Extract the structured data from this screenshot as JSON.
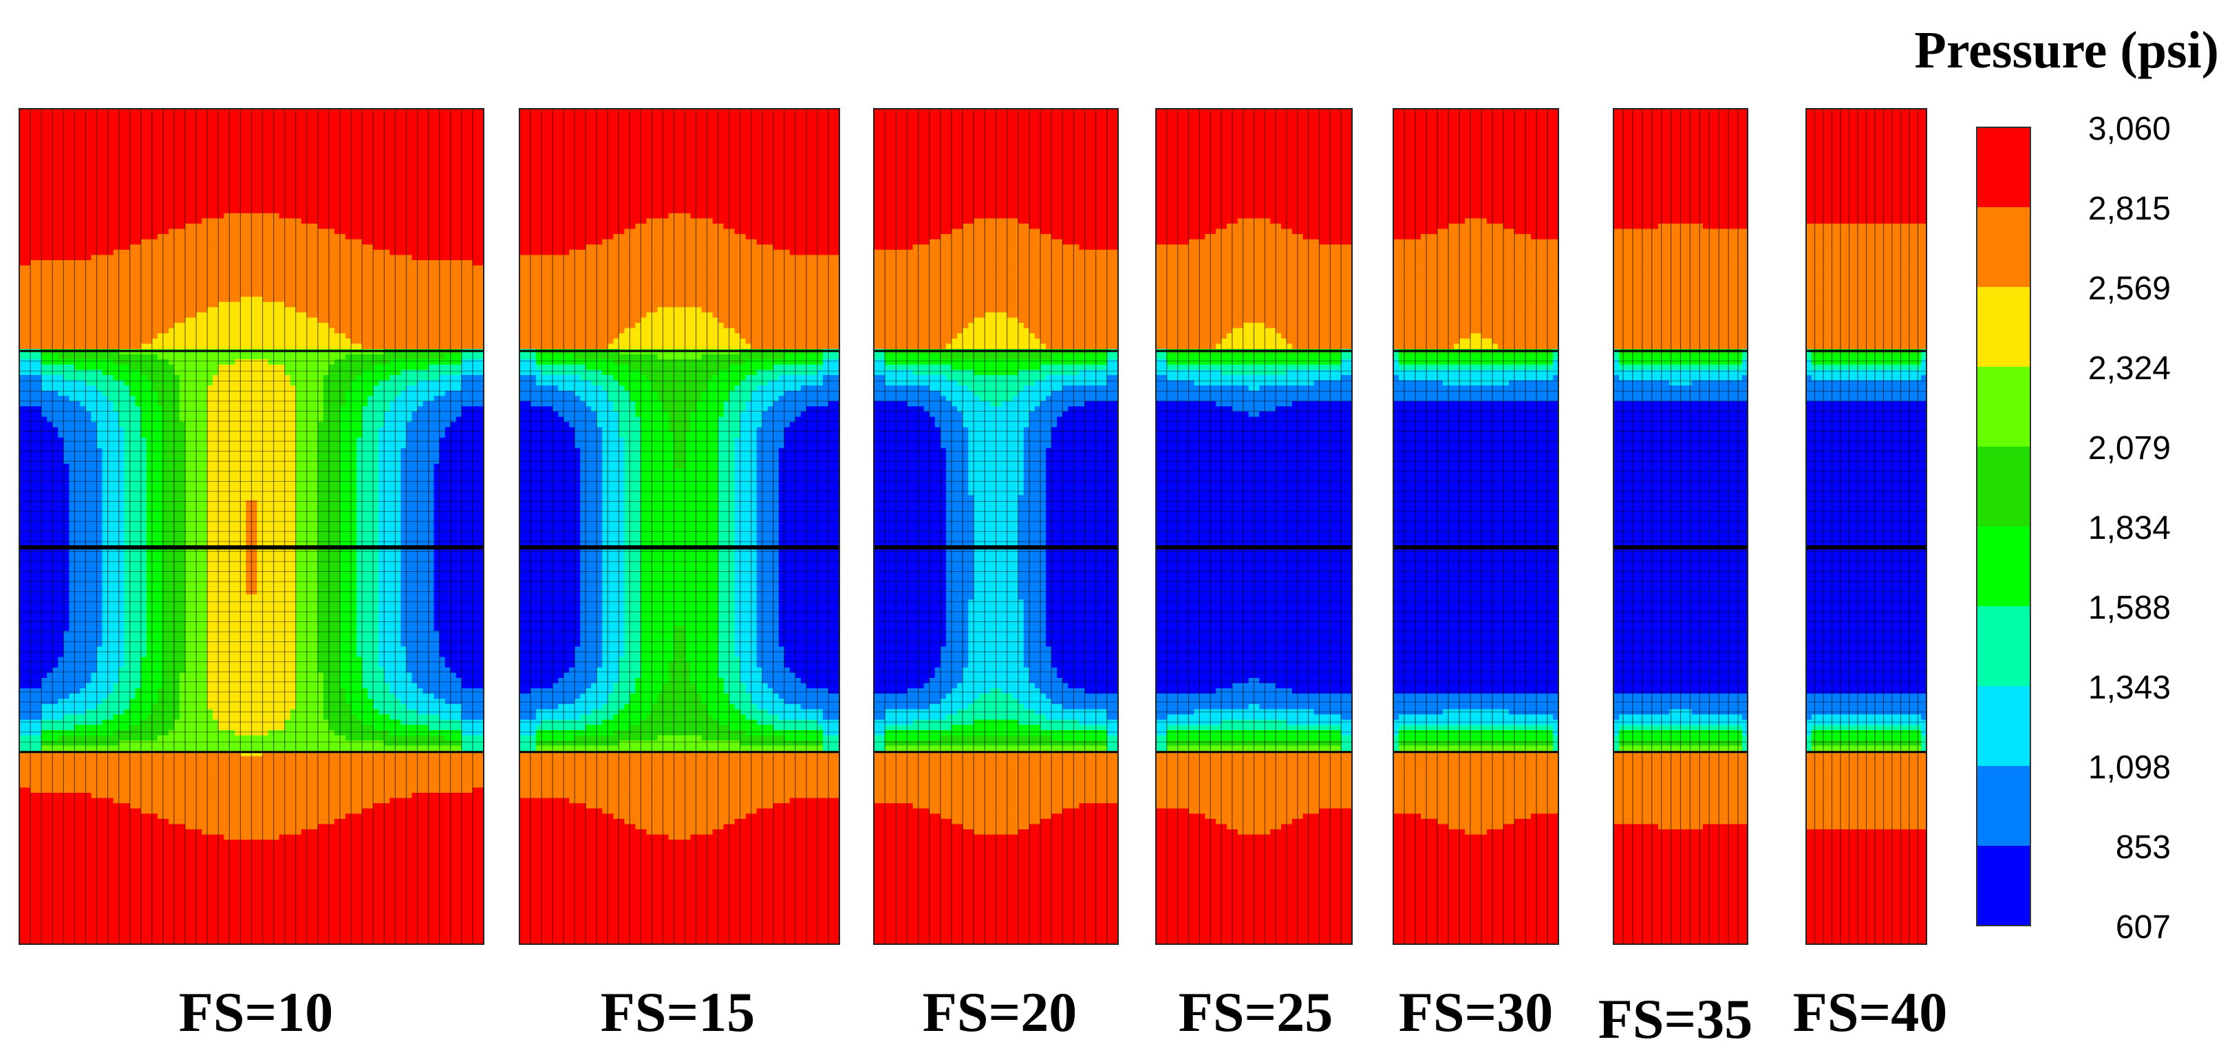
{
  "chart_data": {
    "type": "heatmap",
    "title": "Pressure (psi)",
    "colorbar": {
      "ticks": [
        "3,060",
        "2,815",
        "2,569",
        "2,324",
        "2,079",
        "1,834",
        "1,588",
        "1,343",
        "1,098",
        "853",
        "607"
      ],
      "values": [
        3060,
        2815,
        2569,
        2324,
        2079,
        1834,
        1588,
        1343,
        1098,
        853,
        607
      ],
      "range": [
        607,
        3060
      ],
      "colors": [
        "#ff0000",
        "#ff7f00",
        "#ffe600",
        "#66ff00",
        "#22dd00",
        "#00ff00",
        "#00ffaa",
        "#00e5ff",
        "#0080ff",
        "#0000ff"
      ]
    },
    "panels": [
      {
        "label": "FS=10",
        "fs": 10,
        "center_band_value": 2570,
        "low_value": 607
      },
      {
        "label": "FS=15",
        "fs": 15,
        "center_band_value": 1834,
        "low_value": 607
      },
      {
        "label": "FS=20",
        "fs": 20,
        "center_band_value": 1220,
        "low_value": 607
      },
      {
        "label": "FS=25",
        "fs": 25,
        "center_band_value": 730,
        "low_value": 607
      },
      {
        "label": "FS=30",
        "fs": 30,
        "center_band_value": 640,
        "low_value": 607
      },
      {
        "label": "FS=35",
        "fs": 35,
        "center_band_value": 620,
        "low_value": 607
      },
      {
        "label": "FS=40",
        "fs": 40,
        "center_band_value": 615,
        "low_value": 607
      }
    ]
  }
}
